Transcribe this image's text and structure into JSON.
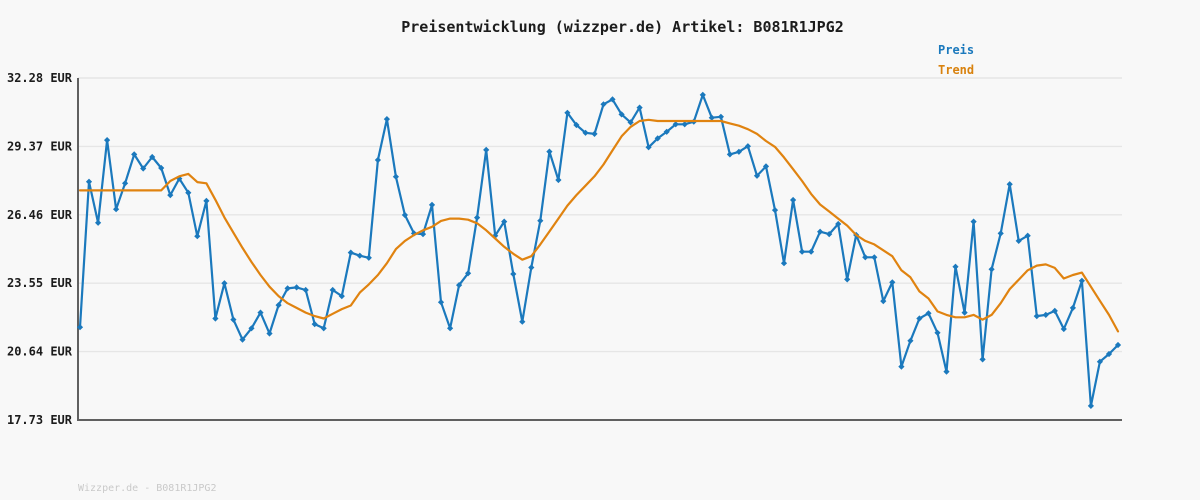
{
  "title": "Preisentwicklung (wizzper.de) Artikel: B081R1JPG2",
  "footer": "Wizzper.de - B081R1JPG2",
  "legend": [
    {
      "label": "Preis",
      "color": "#1b79bd"
    },
    {
      "label": "Trend",
      "color": "#d9820e"
    }
  ],
  "colors": {
    "background": "#f8f8f8",
    "grid": "#e6e6e6",
    "axis": "#606060",
    "price": "#1b79bd",
    "trend": "#e08310",
    "text": "#1c1c1c",
    "footer_text": "#c9c9c9"
  },
  "chart_data": {
    "type": "line",
    "title": "Preisentwicklung (wizzper.de) Artikel: B081R1JPG2",
    "xlabel": "",
    "ylabel": "",
    "ylim": [
      17.73,
      32.28
    ],
    "grid": true,
    "legend_position": "top-right",
    "x_axis_labels": "none (time axis unlabeled)",
    "y_ticks": [
      {
        "label": "32.28 EUR",
        "value": 32.28
      },
      {
        "label": "29.37 EUR",
        "value": 29.37
      },
      {
        "label": "26.46 EUR",
        "value": 26.46
      },
      {
        "label": "23.55 EUR",
        "value": 23.55
      },
      {
        "label": "20.64 EUR",
        "value": 20.64
      },
      {
        "label": "17.73 EUR",
        "value": 17.73
      }
    ],
    "series": [
      {
        "name": "Preis",
        "color": "#1b79bd",
        "markers": true,
        "values": [
          21.68,
          27.87,
          26.12,
          29.64,
          26.7,
          27.8,
          29.03,
          28.43,
          28.92,
          28.45,
          27.3,
          28.0,
          27.4,
          25.55,
          27.05,
          22.05,
          23.55,
          22.0,
          21.15,
          21.63,
          22.3,
          21.41,
          22.62,
          23.33,
          23.37,
          23.26,
          21.81,
          21.63,
          23.26,
          23.0,
          24.85,
          24.72,
          24.63,
          28.79,
          30.53,
          28.08,
          26.45,
          25.67,
          25.64,
          26.88,
          22.74,
          21.63,
          23.47,
          23.97,
          26.34,
          29.22,
          25.57,
          26.17,
          23.94,
          21.91,
          24.22,
          26.21,
          29.15,
          27.94,
          30.8,
          30.28,
          29.95,
          29.9,
          31.16,
          31.37,
          30.73,
          30.39,
          31.02,
          29.33,
          29.71,
          29.99,
          30.31,
          30.31,
          30.42,
          31.56,
          30.59,
          30.63,
          29.03,
          29.14,
          29.38,
          28.12,
          28.52,
          26.66,
          24.4,
          27.09,
          24.89,
          24.89,
          25.74,
          25.64,
          26.07,
          23.71,
          25.6,
          24.65,
          24.65,
          22.79,
          23.59,
          20.0,
          21.1,
          22.05,
          22.27,
          21.44,
          19.79,
          24.25,
          22.3,
          26.17,
          20.31,
          24.14,
          25.67,
          27.76,
          25.35,
          25.57,
          22.15,
          22.2,
          22.37,
          21.6,
          22.5,
          23.65,
          18.33,
          20.21,
          20.54,
          20.92
        ]
      },
      {
        "name": "Trend",
        "color": "#e08310",
        "markers": false,
        "values": [
          27.5,
          27.5,
          27.5,
          27.5,
          27.5,
          27.5,
          27.5,
          27.5,
          27.5,
          27.5,
          27.9,
          28.1,
          28.2,
          27.85,
          27.8,
          27.1,
          26.35,
          25.7,
          25.05,
          24.45,
          23.9,
          23.4,
          23.0,
          22.7,
          22.5,
          22.3,
          22.15,
          22.05,
          22.25,
          22.45,
          22.6,
          23.15,
          23.5,
          23.9,
          24.4,
          25.0,
          25.35,
          25.6,
          25.8,
          25.95,
          26.2,
          26.3,
          26.3,
          26.25,
          26.1,
          25.8,
          25.45,
          25.1,
          24.8,
          24.55,
          24.7,
          25.2,
          25.75,
          26.3,
          26.85,
          27.3,
          27.7,
          28.1,
          28.6,
          29.2,
          29.8,
          30.2,
          30.45,
          30.5,
          30.45,
          30.45,
          30.45,
          30.45,
          30.45,
          30.45,
          30.45,
          30.45,
          30.35,
          30.25,
          30.1,
          29.9,
          29.6,
          29.35,
          28.9,
          28.4,
          27.9,
          27.35,
          26.9,
          26.6,
          26.3,
          26.0,
          25.6,
          25.35,
          25.2,
          24.95,
          24.7,
          24.1,
          23.8,
          23.2,
          22.9,
          22.35,
          22.2,
          22.1,
          22.1,
          22.2,
          22.0,
          22.2,
          22.7,
          23.3,
          23.7,
          24.1,
          24.3,
          24.35,
          24.2,
          23.75,
          23.9,
          24.0,
          23.4,
          22.8,
          22.2,
          21.5
        ]
      }
    ]
  }
}
